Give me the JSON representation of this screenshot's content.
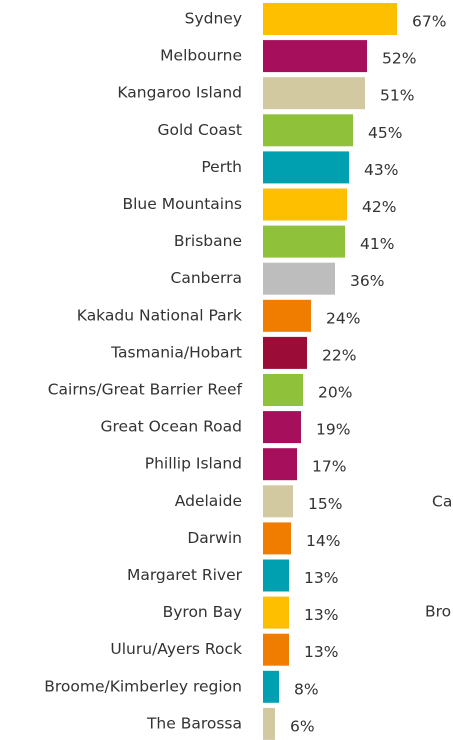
{
  "chart_data": {
    "type": "barh",
    "categories": [
      "Sydney",
      "Melbourne",
      "Kangaroo Island",
      "Gold Coast",
      "Perth",
      "Blue Mountains",
      "Brisbane",
      "Canberra",
      "Kakadu National Park",
      "Tasmania/Hobart",
      "Cairns/Great Barrier Reef",
      "Great Ocean Road",
      "Phillip Island",
      "Adelaide",
      "Darwin",
      "Margaret River",
      "Byron Bay",
      "Uluru/Ayers Rock",
      "Broome/Kimberley region",
      "The Barossa"
    ],
    "values": [
      67,
      52,
      51,
      45,
      43,
      42,
      41,
      36,
      24,
      22,
      20,
      19,
      17,
      15,
      14,
      13,
      13,
      13,
      8,
      6
    ],
    "value_labels": [
      "67%",
      "52%",
      "51%",
      "45%",
      "43%",
      "42%",
      "41%",
      "36%",
      "24%",
      "22%",
      "20%",
      "19%",
      "17%",
      "15%",
      "14%",
      "13%",
      "13%",
      "13%",
      "8%",
      "6%"
    ],
    "colors": [
      "#fdbf00",
      "#a50f5c",
      "#d3c9a0",
      "#8fc23a",
      "#00a0b0",
      "#fdbf00",
      "#8fc23a",
      "#bdbdbd",
      "#f07d00",
      "#9b0d36",
      "#8fc23a",
      "#a50f5c",
      "#a50f5c",
      "#d3c9a0",
      "#f07d00",
      "#00a0b0",
      "#fdbf00",
      "#f07d00",
      "#00a0b0",
      "#d3c9a0"
    ],
    "xlim": [
      0,
      95
    ],
    "annotations": [
      "Ca",
      "Bro"
    ]
  }
}
